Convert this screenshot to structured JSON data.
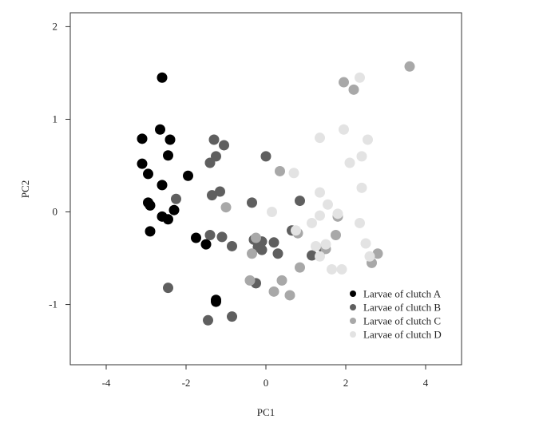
{
  "chart_data": {
    "type": "scatter",
    "title": "",
    "xlabel": "PC1",
    "ylabel": "PC2",
    "xlim": [
      -4.9,
      4.9
    ],
    "ylim": [
      -1.65,
      2.15
    ],
    "xticks": [
      -4,
      -2,
      0,
      2,
      4
    ],
    "yticks": [
      -1,
      0,
      1,
      2
    ],
    "xtick_labels": [
      "-4",
      "-2",
      "0",
      "2",
      "4"
    ],
    "ytick_labels": [
      "-1",
      "0",
      "1",
      "2"
    ],
    "grid": false,
    "legend_position": "bottom-right",
    "series": [
      {
        "name": "Larvae of clutch A",
        "color": "#000000",
        "points": [
          [
            -2.6,
            1.45
          ],
          [
            -2.65,
            0.89
          ],
          [
            -2.4,
            0.78
          ],
          [
            -3.1,
            0.79
          ],
          [
            -2.45,
            0.61
          ],
          [
            -3.1,
            0.52
          ],
          [
            -2.95,
            0.41
          ],
          [
            -1.95,
            0.39
          ],
          [
            -2.6,
            0.29
          ],
          [
            -2.95,
            0.1
          ],
          [
            -2.9,
            0.07
          ],
          [
            -2.3,
            0.02
          ],
          [
            -2.6,
            -0.05
          ],
          [
            -2.45,
            -0.08
          ],
          [
            -2.9,
            -0.21
          ],
          [
            -1.75,
            -0.28
          ],
          [
            -1.5,
            -0.35
          ],
          [
            -1.25,
            -0.95
          ],
          [
            -1.25,
            -0.97
          ]
        ]
      },
      {
        "name": "Larvae of clutch B",
        "color": "#5f5f5f",
        "points": [
          [
            -1.3,
            0.78
          ],
          [
            -1.05,
            0.72
          ],
          [
            -1.25,
            0.6
          ],
          [
            -1.4,
            0.53
          ],
          [
            0.0,
            0.6
          ],
          [
            -1.15,
            0.22
          ],
          [
            -1.35,
            0.18
          ],
          [
            -2.25,
            0.14
          ],
          [
            -0.35,
            0.1
          ],
          [
            0.85,
            0.12
          ],
          [
            -1.4,
            -0.25
          ],
          [
            -1.1,
            -0.27
          ],
          [
            -0.85,
            -0.37
          ],
          [
            -0.3,
            -0.3
          ],
          [
            -0.1,
            -0.32
          ],
          [
            0.2,
            -0.33
          ],
          [
            0.65,
            -0.2
          ],
          [
            -0.2,
            -0.38
          ],
          [
            -0.1,
            -0.41
          ],
          [
            0.3,
            -0.45
          ],
          [
            1.15,
            -0.47
          ],
          [
            1.45,
            -0.4
          ],
          [
            -0.25,
            -0.77
          ],
          [
            -2.45,
            -0.82
          ],
          [
            -1.45,
            -1.17
          ],
          [
            -0.85,
            -1.13
          ]
        ]
      },
      {
        "name": "Larvae of clutch C",
        "color": "#a8a8a8",
        "points": [
          [
            1.95,
            1.4
          ],
          [
            2.2,
            1.32
          ],
          [
            3.6,
            1.57
          ],
          [
            0.35,
            0.44
          ],
          [
            -1.0,
            0.05
          ],
          [
            1.8,
            -0.05
          ],
          [
            0.8,
            -0.23
          ],
          [
            1.75,
            -0.25
          ],
          [
            -0.25,
            -0.28
          ],
          [
            -0.35,
            -0.45
          ],
          [
            0.85,
            -0.6
          ],
          [
            0.4,
            -0.74
          ],
          [
            -0.4,
            -0.74
          ],
          [
            0.2,
            -0.86
          ],
          [
            0.6,
            -0.9
          ],
          [
            2.8,
            -0.45
          ],
          [
            2.65,
            -0.55
          ],
          [
            1.5,
            -0.4
          ]
        ]
      },
      {
        "name": "Larvae of clutch D",
        "color": "#e3e3e3",
        "points": [
          [
            2.35,
            1.45
          ],
          [
            1.95,
            0.89
          ],
          [
            2.55,
            0.78
          ],
          [
            1.35,
            0.8
          ],
          [
            2.4,
            0.6
          ],
          [
            2.1,
            0.53
          ],
          [
            0.7,
            0.42
          ],
          [
            2.4,
            0.26
          ],
          [
            1.35,
            0.21
          ],
          [
            1.55,
            0.08
          ],
          [
            1.8,
            -0.02
          ],
          [
            1.35,
            -0.04
          ],
          [
            0.15,
            0.0
          ],
          [
            1.15,
            -0.12
          ],
          [
            0.75,
            -0.2
          ],
          [
            2.35,
            -0.12
          ],
          [
            2.5,
            -0.34
          ],
          [
            1.25,
            -0.37
          ],
          [
            1.5,
            -0.35
          ],
          [
            1.35,
            -0.48
          ],
          [
            2.6,
            -0.48
          ],
          [
            1.65,
            -0.62
          ],
          [
            1.9,
            -0.62
          ]
        ]
      }
    ]
  }
}
